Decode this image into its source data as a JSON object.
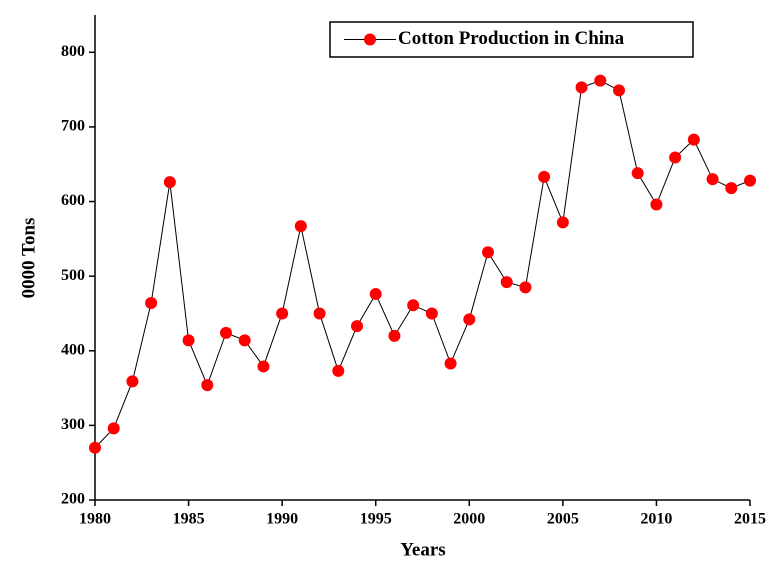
{
  "chart_data": {
    "type": "line",
    "x_label": "Years",
    "y_label": "0000 Tons",
    "x": [
      1980,
      1981,
      1982,
      1983,
      1984,
      1985,
      1986,
      1987,
      1988,
      1989,
      1990,
      1991,
      1992,
      1993,
      1994,
      1995,
      1996,
      1997,
      1998,
      1999,
      2000,
      2001,
      2002,
      2003,
      2004,
      2005,
      2006,
      2007,
      2008,
      2009,
      2010,
      2011,
      2012,
      2013,
      2014,
      2015
    ],
    "series": [
      {
        "name": "Cotton Production in China",
        "color": "#ff0000",
        "values": [
          270,
          296,
          359,
          464,
          626,
          414,
          354,
          424,
          414,
          379,
          450,
          567,
          450,
          373,
          433,
          476,
          420,
          461,
          450,
          383,
          442,
          532,
          492,
          485,
          633,
          572,
          753,
          762,
          749,
          638,
          596,
          659,
          683,
          630,
          618,
          628
        ]
      }
    ],
    "xlim": [
      1980,
      2015
    ],
    "xticks": [
      1980,
      1985,
      1990,
      1995,
      2000,
      2005,
      2010,
      2015
    ],
    "ylim": [
      200,
      850
    ],
    "yticks": [
      200,
      300,
      400,
      500,
      600,
      700,
      800
    ],
    "legend": "top-right"
  }
}
